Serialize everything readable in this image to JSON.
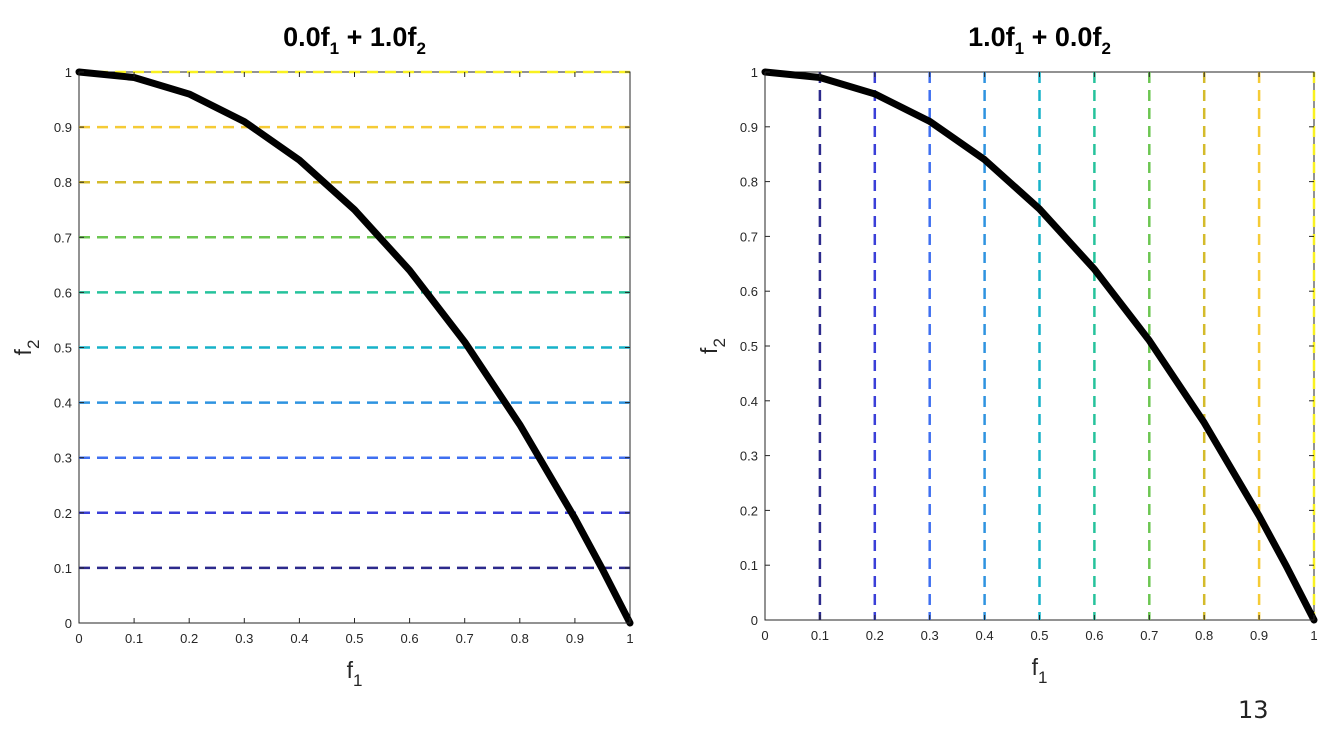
{
  "chart_data": [
    {
      "type": "line",
      "title": {
        "c1": "0.0",
        "v1": "f",
        "s1": "1",
        "op": " + ",
        "c2": "1.0",
        "v2": "f",
        "s2": "2"
      },
      "xlabel": {
        "var": "f",
        "sub": "1"
      },
      "ylabel": {
        "var": "f",
        "sub": "2"
      },
      "xlim": [
        0,
        1
      ],
      "ylim": [
        0,
        1
      ],
      "xticks": [
        "0",
        "0.1",
        "0.2",
        "0.3",
        "0.4",
        "0.5",
        "0.6",
        "0.7",
        "0.8",
        "0.9",
        "1"
      ],
      "yticks": [
        "0",
        "0.1",
        "0.2",
        "0.3",
        "0.4",
        "0.5",
        "0.6",
        "0.7",
        "0.8",
        "0.9",
        "1"
      ],
      "grid": false,
      "contours": {
        "orientation": "horizontal",
        "values": [
          0.1,
          0.2,
          0.3,
          0.4,
          0.5,
          0.6,
          0.7,
          0.8,
          0.9,
          1.0
        ],
        "colors": [
          "#2c2a8c",
          "#3a3fd8",
          "#3f6ff0",
          "#2e93e0",
          "#17b2c8",
          "#25c29c",
          "#6cc651",
          "#d4bb2b",
          "#f5cb36",
          "#f9f120"
        ]
      },
      "front": {
        "x": [
          0,
          0.1,
          0.2,
          0.3,
          0.4,
          0.5,
          0.6,
          0.7,
          0.8,
          0.9,
          0.95,
          1.0
        ],
        "y": [
          1.0,
          0.99,
          0.96,
          0.91,
          0.84,
          0.75,
          0.64,
          0.51,
          0.36,
          0.19,
          0.0975,
          0.0
        ]
      }
    },
    {
      "type": "line",
      "title": {
        "c1": "1.0",
        "v1": "f",
        "s1": "1",
        "op": " + ",
        "c2": "0.0",
        "v2": "f",
        "s2": "2"
      },
      "xlabel": {
        "var": "f",
        "sub": "1"
      },
      "ylabel": {
        "var": "f",
        "sub": "2"
      },
      "xlim": [
        0,
        1
      ],
      "ylim": [
        0,
        1
      ],
      "xticks": [
        "0",
        "0.1",
        "0.2",
        "0.3",
        "0.4",
        "0.5",
        "0.6",
        "0.7",
        "0.8",
        "0.9",
        "1"
      ],
      "yticks": [
        "0",
        "0.1",
        "0.2",
        "0.3",
        "0.4",
        "0.5",
        "0.6",
        "0.7",
        "0.8",
        "0.9",
        "1"
      ],
      "grid": false,
      "contours": {
        "orientation": "vertical",
        "values": [
          0.1,
          0.2,
          0.3,
          0.4,
          0.5,
          0.6,
          0.7,
          0.8,
          0.9,
          1.0
        ],
        "colors": [
          "#2c2a8c",
          "#3a3fd8",
          "#3f6ff0",
          "#2e93e0",
          "#17b2c8",
          "#25c29c",
          "#6cc651",
          "#d4bb2b",
          "#f5cb36",
          "#f9f120"
        ]
      },
      "front": {
        "x": [
          0,
          0.1,
          0.2,
          0.3,
          0.4,
          0.5,
          0.6,
          0.7,
          0.8,
          0.9,
          0.95,
          1.0
        ],
        "y": [
          1.0,
          0.99,
          0.96,
          0.91,
          0.84,
          0.75,
          0.64,
          0.51,
          0.36,
          0.19,
          0.0975,
          0.0
        ]
      }
    }
  ],
  "page": {
    "number": "13"
  }
}
